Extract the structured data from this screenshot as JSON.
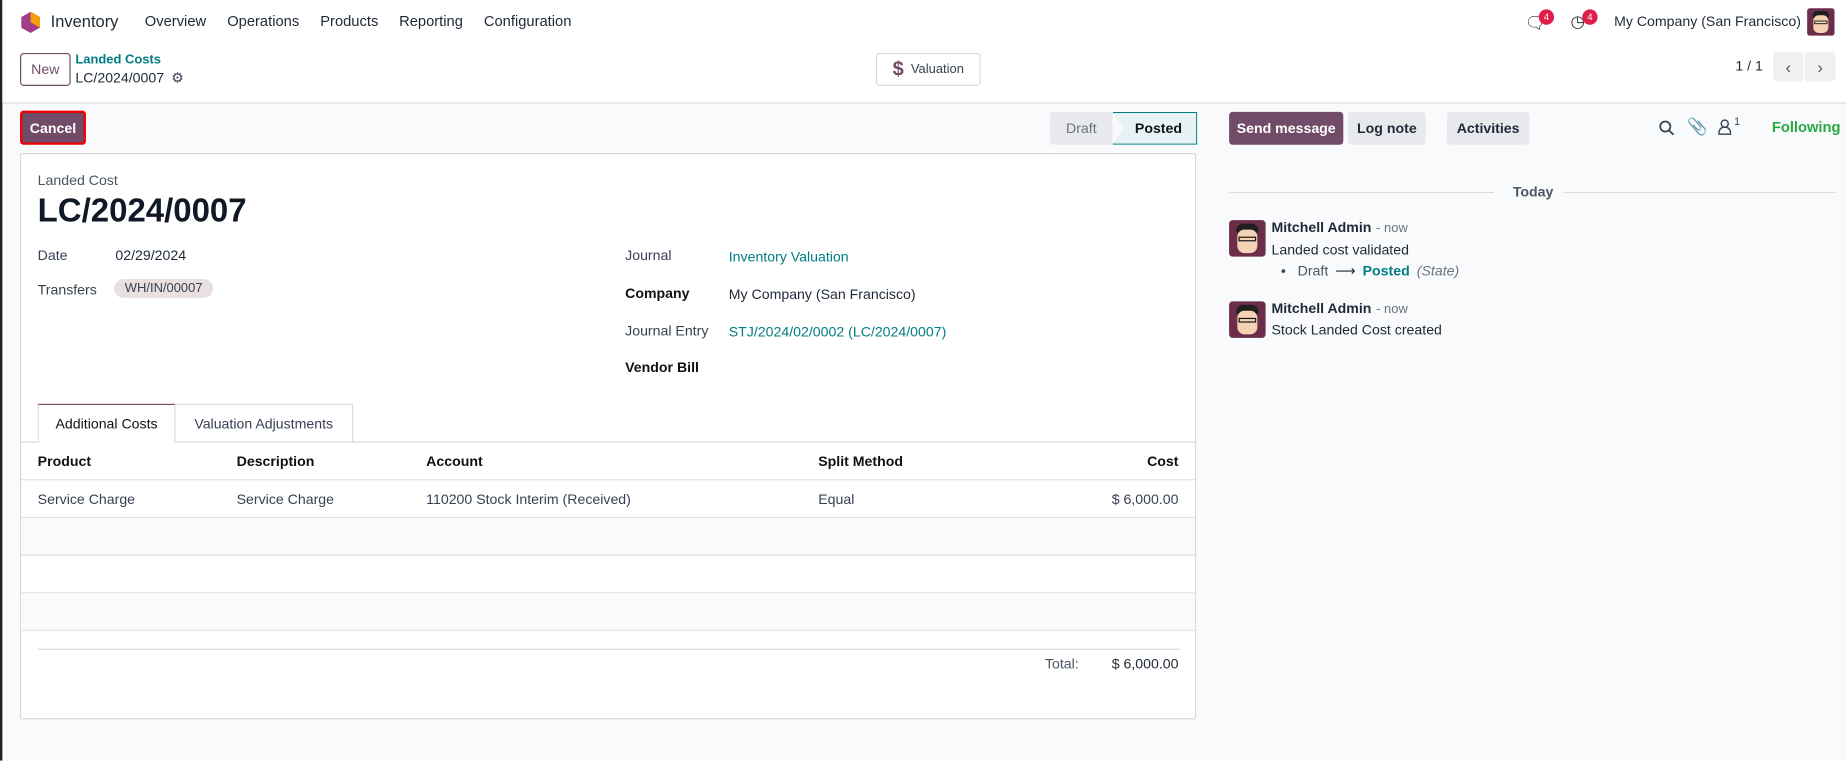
{
  "nav": {
    "app": "Inventory",
    "menus": [
      "Overview",
      "Operations",
      "Products",
      "Reporting",
      "Configuration"
    ],
    "messages_badge": "4",
    "activities_badge": "4",
    "company": "My Company (San Francisco)"
  },
  "control_panel": {
    "new_label": "New",
    "breadcrumb_parent": "Landed Costs",
    "breadcrumb_current": "LC/2024/0007",
    "valuation_label": "Valuation",
    "pager": "1 / 1"
  },
  "statusbar": {
    "cancel_label": "Cancel",
    "stages": [
      "Draft",
      "Posted"
    ],
    "active_stage": "Posted"
  },
  "form": {
    "subtitle": "Landed Cost",
    "title": "LC/2024/0007",
    "date_label": "Date",
    "date": "02/29/2024",
    "transfers_label": "Transfers",
    "transfer_tag": "WH/IN/00007",
    "journal_label": "Journal",
    "journal": "Inventory Valuation",
    "company_label": "Company",
    "company": "My Company (San Francisco)",
    "journal_entry_label": "Journal Entry",
    "journal_entry": "STJ/2024/02/0002 (LC/2024/0007)",
    "vendor_bill_label": "Vendor Bill",
    "tabs": [
      "Additional Costs",
      "Valuation Adjustments"
    ],
    "columns": [
      "Product",
      "Description",
      "Account",
      "Split Method",
      "Cost"
    ],
    "rows": [
      {
        "product": "Service Charge",
        "description": "Service Charge",
        "account": "110200 Stock Interim (Received)",
        "split": "Equal",
        "cost": "$ 6,000.00"
      }
    ],
    "total_label": "Total:",
    "total": "$ 6,000.00"
  },
  "chatter": {
    "send_message": "Send message",
    "log_note": "Log note",
    "activities": "Activities",
    "followers_count": "1",
    "following": "Following",
    "date_separator": "Today",
    "messages": [
      {
        "author": "Mitchell Admin",
        "time": "- now",
        "body": "Landed cost validated",
        "change_from": "Draft",
        "change_to": "Posted",
        "change_field": "(State)"
      },
      {
        "author": "Mitchell Admin",
        "time": "- now",
        "body": "Stock Landed Cost created"
      }
    ]
  },
  "colors": {
    "primary": "#714b67",
    "link": "#017e84",
    "following": "#28a745",
    "badge": "#e11d48"
  }
}
